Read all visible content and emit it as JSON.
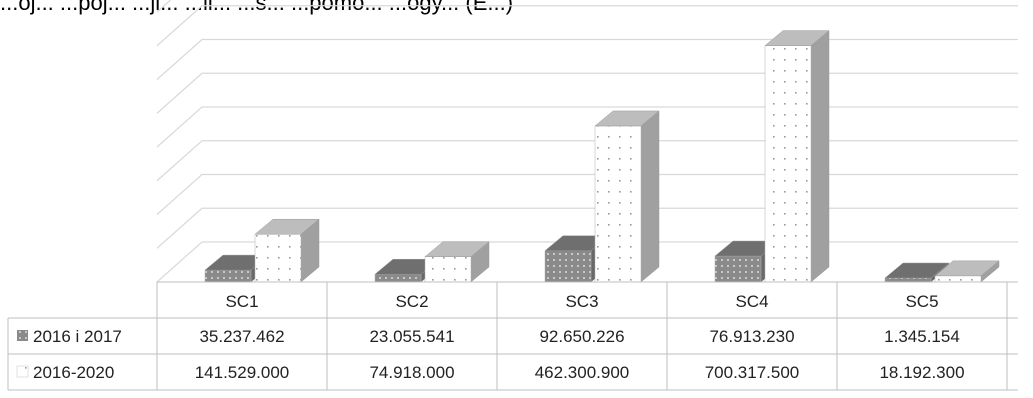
{
  "title": "...oj... ...poj... ...ji...   ...li... ...s... ...pomo... ...ogy... (E...)",
  "chart_data": {
    "type": "bar",
    "style": "3d-clustered-column-with-data-table",
    "categories": [
      "SC1",
      "SC2",
      "SC3",
      "SC4",
      "SC5"
    ],
    "series": [
      {
        "name": "2016 i 2017",
        "values": [
          35237462,
          23055541,
          92650226,
          76913230,
          1345154
        ],
        "labels": [
          "35.237.462",
          "23.055.541",
          "92.650.226",
          "76.913.230",
          "1.345.154"
        ],
        "color": "#8c8c8c"
      },
      {
        "name": "2016-2020",
        "values": [
          141529000,
          74918000,
          462300900,
          700317500,
          18192300
        ],
        "labels": [
          "141.529.000",
          "74.918.000",
          "462.300.900",
          "700.317.500",
          "18.192.300"
        ],
        "color": "#ffffff"
      }
    ],
    "ylim": [
      0,
      800000000
    ],
    "grid": true,
    "legend": "data-table-left"
  }
}
